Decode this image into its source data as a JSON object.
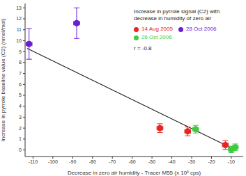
{
  "chart_data": {
    "type": "scatter",
    "title": "Increase in pyrrole signal (C2) with decrease in humidity of zero air",
    "x_label": "Decrease in zero air humidity - Tracer M55 (x 10³ cps)",
    "y_label": "Increase in pyrrole baseline value (C2) (nmol/mol)",
    "annotations": [
      "r = -0.8"
    ],
    "series": [
      {
        "name": "14 Aug 2005",
        "color": "#e8251f",
        "marker": "circle",
        "x": [
          -46,
          -32,
          -13
        ],
        "values": [
          2.0,
          1.7,
          0.45
        ],
        "y_err": [
          0.4,
          0.4,
          0.4
        ],
        "x_err": [
          1.5,
          1.5,
          1.5
        ]
      },
      {
        "name": "28 Oct 2006",
        "color": "#6a1fd1",
        "marker": "circle",
        "x": [
          -112,
          -88
        ],
        "values": [
          9.7,
          11.6
        ],
        "y_err": [
          1.4,
          1.4
        ],
        "x_err": [
          1.5,
          1.5
        ]
      },
      {
        "name": "26 Oct 2006",
        "color": "#3ecb3e",
        "marker": "circle",
        "x": [
          -28,
          -10,
          -8
        ],
        "values": [
          1.9,
          0.05,
          0.25
        ],
        "y_err": [
          0.35,
          0.3,
          0.3
        ],
        "x_err": [
          1.5,
          1.5,
          1.5
        ]
      }
    ],
    "trend_line": {
      "x": [
        -113,
        -9
      ],
      "y": [
        9.3,
        0.1
      ],
      "color": "#222222"
    },
    "xlim": [
      -114,
      -4
    ],
    "xticks": [
      -110,
      -100,
      -90,
      -80,
      -70,
      -60,
      -50,
      -40,
      -30,
      -20,
      -10
    ],
    "ylim": [
      -0.6,
      13.4
    ],
    "yticks": [
      0,
      1,
      2,
      3,
      4,
      5,
      6,
      7,
      8,
      9,
      10,
      11,
      12,
      13
    ],
    "grid": false,
    "legend": "upper right"
  }
}
